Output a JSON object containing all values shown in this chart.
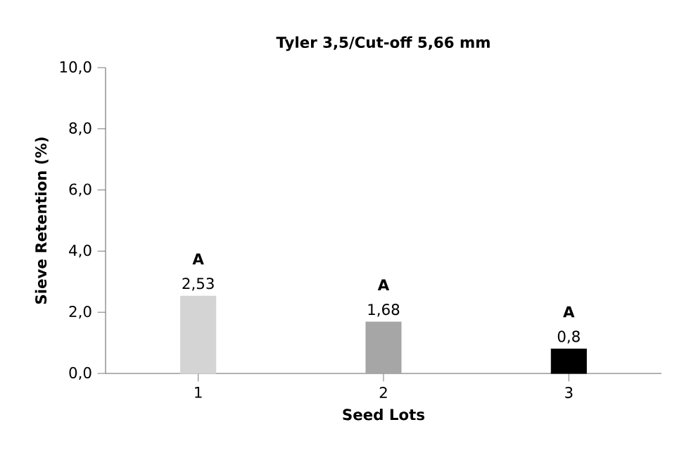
{
  "chart_data": {
    "type": "bar",
    "title": "Tyler 3,5/Cut-off 5,66 mm",
    "xlabel": "Seed Lots",
    "ylabel": "Sieve Retention (%)",
    "categories": [
      "1",
      "2",
      "3"
    ],
    "values": [
      2.53,
      1.68,
      0.8
    ],
    "colors": [
      "#d4d4d4",
      "#a6a6a6",
      "#000000"
    ],
    "value_labels": [
      "2,53",
      "1,68",
      "0,8"
    ],
    "ylim": [
      0,
      10
    ],
    "yticks": [
      {
        "value": 0,
        "label": "0,0"
      },
      {
        "value": 2,
        "label": "2,0"
      },
      {
        "value": 4,
        "label": "4,0"
      },
      {
        "value": 6,
        "label": "6,0"
      },
      {
        "value": 8,
        "label": "8,0"
      },
      {
        "value": 10,
        "label": "10,0"
      }
    ],
    "annotations": [
      "A",
      "A",
      "A"
    ]
  }
}
